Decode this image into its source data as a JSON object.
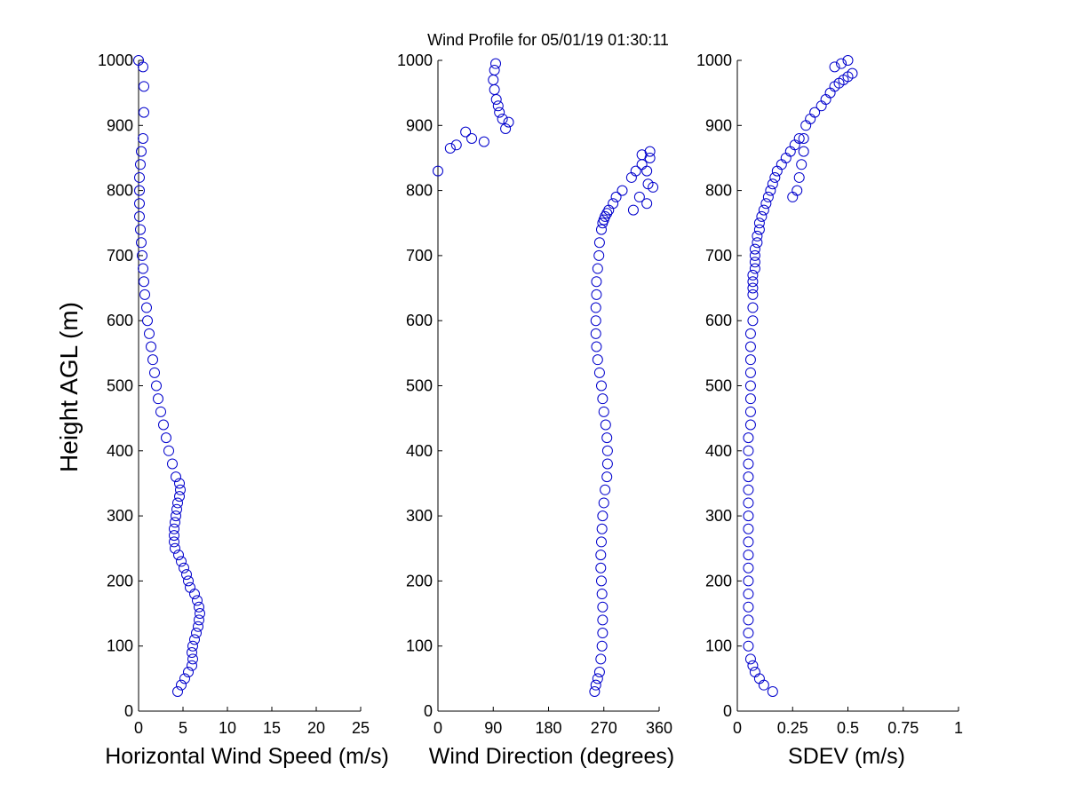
{
  "title": "Wind Profile for  05/01/19 01:30:11",
  "ylabel": "Height AGL (m)",
  "marker_color": "#0000cc",
  "chart_data": [
    {
      "type": "scatter",
      "xlabel": "Horizontal Wind Speed (m/s)",
      "ylabel": "Height AGL (m)",
      "xlim": [
        0,
        25
      ],
      "ylim": [
        0,
        1000
      ],
      "xticks": [
        0,
        5,
        10,
        15,
        20,
        25
      ],
      "xtick_labels": [
        "0",
        "5",
        "10",
        "15",
        "20",
        "25"
      ],
      "yticks": [
        0,
        100,
        200,
        300,
        400,
        500,
        600,
        700,
        800,
        900,
        1000
      ],
      "ytick_labels": [
        "0",
        "100",
        "200",
        "300",
        "400",
        "500",
        "600",
        "700",
        "800",
        "900",
        "1000"
      ],
      "grid": false,
      "series": [
        {
          "x": [
            4.4,
            4.8,
            5.2,
            5.6,
            6.0,
            6.1,
            6.0,
            6.1,
            6.3,
            6.5,
            6.7,
            6.8,
            6.9,
            6.8,
            6.6,
            6.3,
            5.8,
            5.6,
            5.4,
            5.1,
            4.8,
            4.5,
            4.1,
            4.0,
            4.0,
            4.0,
            4.1,
            4.2,
            4.3,
            4.4,
            4.6,
            4.7,
            4.6,
            4.2,
            3.8,
            3.4,
            3.1,
            2.8,
            2.5,
            2.2,
            2.0,
            1.8,
            1.6,
            1.4,
            1.2,
            1.0,
            0.9,
            0.7,
            0.6,
            0.5,
            0.4,
            0.3,
            0.2,
            0.1,
            0.1,
            0.1,
            0.1,
            0.2,
            0.3,
            0.5,
            0.6,
            0.6,
            0.5,
            0.0
          ],
          "y": [
            30,
            40,
            50,
            60,
            70,
            80,
            90,
            100,
            110,
            120,
            130,
            140,
            150,
            160,
            170,
            180,
            190,
            200,
            210,
            220,
            230,
            240,
            250,
            260,
            270,
            280,
            290,
            300,
            310,
            320,
            330,
            340,
            350,
            360,
            380,
            400,
            420,
            440,
            460,
            480,
            500,
            520,
            540,
            560,
            580,
            600,
            620,
            640,
            660,
            680,
            700,
            720,
            740,
            760,
            780,
            800,
            820,
            840,
            860,
            880,
            920,
            960,
            990,
            1000
          ]
        }
      ]
    },
    {
      "type": "scatter",
      "xlabel": "Wind Direction (degrees)",
      "ylabel": "",
      "xlim": [
        0,
        360
      ],
      "ylim": [
        0,
        1000
      ],
      "xticks": [
        0,
        90,
        180,
        270,
        360
      ],
      "xtick_labels": [
        "0",
        "90",
        "180",
        "270",
        "360"
      ],
      "yticks": [
        0,
        100,
        200,
        300,
        400,
        500,
        600,
        700,
        800,
        900,
        1000
      ],
      "ytick_labels": [
        "0",
        "100",
        "200",
        "300",
        "400",
        "500",
        "600",
        "700",
        "800",
        "900",
        "1000"
      ],
      "grid": false,
      "series": [
        {
          "x": [
            255,
            257,
            260,
            263,
            265,
            267,
            268,
            268,
            268,
            267,
            266,
            265,
            265,
            266,
            267,
            268,
            270,
            272,
            275,
            276,
            276,
            275,
            273,
            270,
            268,
            266,
            263,
            260,
            258,
            257,
            257,
            257,
            258,
            258,
            260,
            262,
            263,
            266,
            268,
            270,
            272,
            275,
            278,
            285,
            290,
            300,
            315,
            322,
            332,
            345,
            345,
            340,
            342,
            350,
            340,
            318,
            328,
            332,
            0,
            20,
            30,
            45,
            55,
            75,
            110,
            115,
            105,
            100,
            98,
            95,
            92,
            90,
            92,
            94
          ],
          "y": [
            30,
            40,
            50,
            60,
            80,
            100,
            120,
            140,
            160,
            180,
            200,
            220,
            240,
            260,
            280,
            300,
            320,
            340,
            360,
            380,
            400,
            420,
            440,
            460,
            480,
            500,
            520,
            540,
            560,
            580,
            600,
            620,
            640,
            660,
            680,
            700,
            720,
            740,
            750,
            755,
            760,
            765,
            770,
            780,
            790,
            800,
            820,
            830,
            840,
            850,
            860,
            830,
            810,
            805,
            780,
            770,
            790,
            855,
            830,
            865,
            870,
            890,
            880,
            875,
            895,
            905,
            910,
            920,
            930,
            940,
            955,
            970,
            985,
            995
          ]
        }
      ]
    },
    {
      "type": "scatter",
      "xlabel": "SDEV  (m/s)",
      "ylabel": "",
      "xlim": [
        0,
        1
      ],
      "ylim": [
        0,
        1000
      ],
      "xticks": [
        0,
        0.25,
        0.5,
        0.75,
        1
      ],
      "xtick_labels": [
        "0",
        "0.25",
        "0.5",
        "0.75",
        "1"
      ],
      "yticks": [
        0,
        100,
        200,
        300,
        400,
        500,
        600,
        700,
        800,
        900,
        1000
      ],
      "ytick_labels": [
        "0",
        "100",
        "200",
        "300",
        "400",
        "500",
        "600",
        "700",
        "800",
        "900",
        "1000"
      ],
      "grid": false,
      "series": [
        {
          "x": [
            0.16,
            0.12,
            0.1,
            0.08,
            0.07,
            0.06,
            0.05,
            0.05,
            0.05,
            0.05,
            0.05,
            0.05,
            0.05,
            0.05,
            0.05,
            0.05,
            0.05,
            0.05,
            0.05,
            0.05,
            0.05,
            0.05,
            0.05,
            0.06,
            0.06,
            0.06,
            0.06,
            0.06,
            0.06,
            0.06,
            0.06,
            0.07,
            0.07,
            0.07,
            0.07,
            0.07,
            0.07,
            0.08,
            0.08,
            0.08,
            0.08,
            0.09,
            0.09,
            0.1,
            0.1,
            0.11,
            0.12,
            0.13,
            0.14,
            0.15,
            0.16,
            0.17,
            0.18,
            0.2,
            0.22,
            0.24,
            0.26,
            0.28,
            0.25,
            0.27,
            0.28,
            0.29,
            0.3,
            0.3,
            0.31,
            0.33,
            0.35,
            0.38,
            0.4,
            0.42,
            0.44,
            0.46,
            0.48,
            0.5,
            0.52,
            0.44,
            0.47,
            0.5
          ],
          "y": [
            30,
            40,
            50,
            60,
            70,
            80,
            100,
            120,
            140,
            160,
            180,
            200,
            220,
            240,
            260,
            280,
            300,
            320,
            340,
            360,
            380,
            400,
            420,
            440,
            460,
            480,
            500,
            520,
            540,
            560,
            580,
            600,
            620,
            640,
            650,
            660,
            670,
            680,
            690,
            700,
            710,
            720,
            730,
            740,
            750,
            760,
            770,
            780,
            790,
            800,
            810,
            820,
            830,
            840,
            850,
            860,
            870,
            880,
            790,
            800,
            820,
            840,
            860,
            880,
            900,
            910,
            920,
            930,
            940,
            950,
            960,
            965,
            970,
            975,
            980,
            990,
            995,
            1000
          ]
        }
      ]
    }
  ]
}
